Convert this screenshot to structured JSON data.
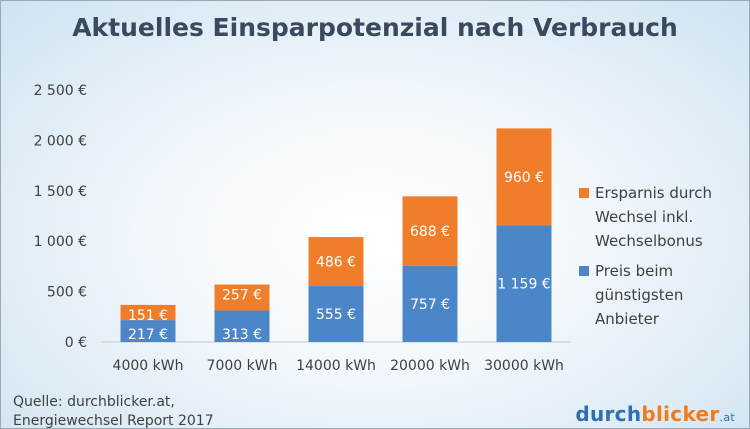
{
  "title": "Aktuelles Einsparpotenzial nach Verbrauch",
  "source": {
    "line1": "Quelle: durchblicker.at,",
    "line2": "Energiewechsel Report 2017"
  },
  "logo": {
    "part1": "durch",
    "part2": "blicker",
    "part3": ".at"
  },
  "colors": {
    "preis": "#4a86c8",
    "ersparnis": "#ef7d2a"
  },
  "chart_data": {
    "type": "bar",
    "stacked": true,
    "title": "Aktuelles Einsparpotenzial nach Verbrauch",
    "categories": [
      "4000 kWh",
      "7000 kWh",
      "14000 kWh",
      "20000 kWh",
      "30000 kWh"
    ],
    "series": [
      {
        "name": "Preis beim günstigsten Anbieter",
        "values": [
          217,
          313,
          555,
          757,
          1159
        ],
        "labels": [
          "217 €",
          "313 €",
          "555 €",
          "757 €",
          "1 159 €"
        ],
        "color": "#4a86c8"
      },
      {
        "name": "Ersparnis durch Wechsel inkl. Wechselbonus",
        "values": [
          151,
          257,
          486,
          688,
          960
        ],
        "labels": [
          "151 €",
          "257 €",
          "486 €",
          "688 €",
          "960 €"
        ],
        "color": "#ef7d2a"
      }
    ],
    "yticks": [
      0,
      500,
      1000,
      1500,
      2000,
      2500
    ],
    "ytick_labels": [
      "0 €",
      "500 €",
      "1 000 €",
      "1 500 €",
      "2 000 €",
      "2 500 €"
    ],
    "ylim": [
      0,
      2500
    ],
    "grid": false,
    "legend": "right"
  },
  "legend": [
    {
      "line1": "Ersparnis durch",
      "line2": "Wechsel inkl.",
      "line3": "Wechselbonus"
    },
    {
      "line1": "Preis beim",
      "line2": "günstigsten",
      "line3": "Anbieter"
    }
  ]
}
